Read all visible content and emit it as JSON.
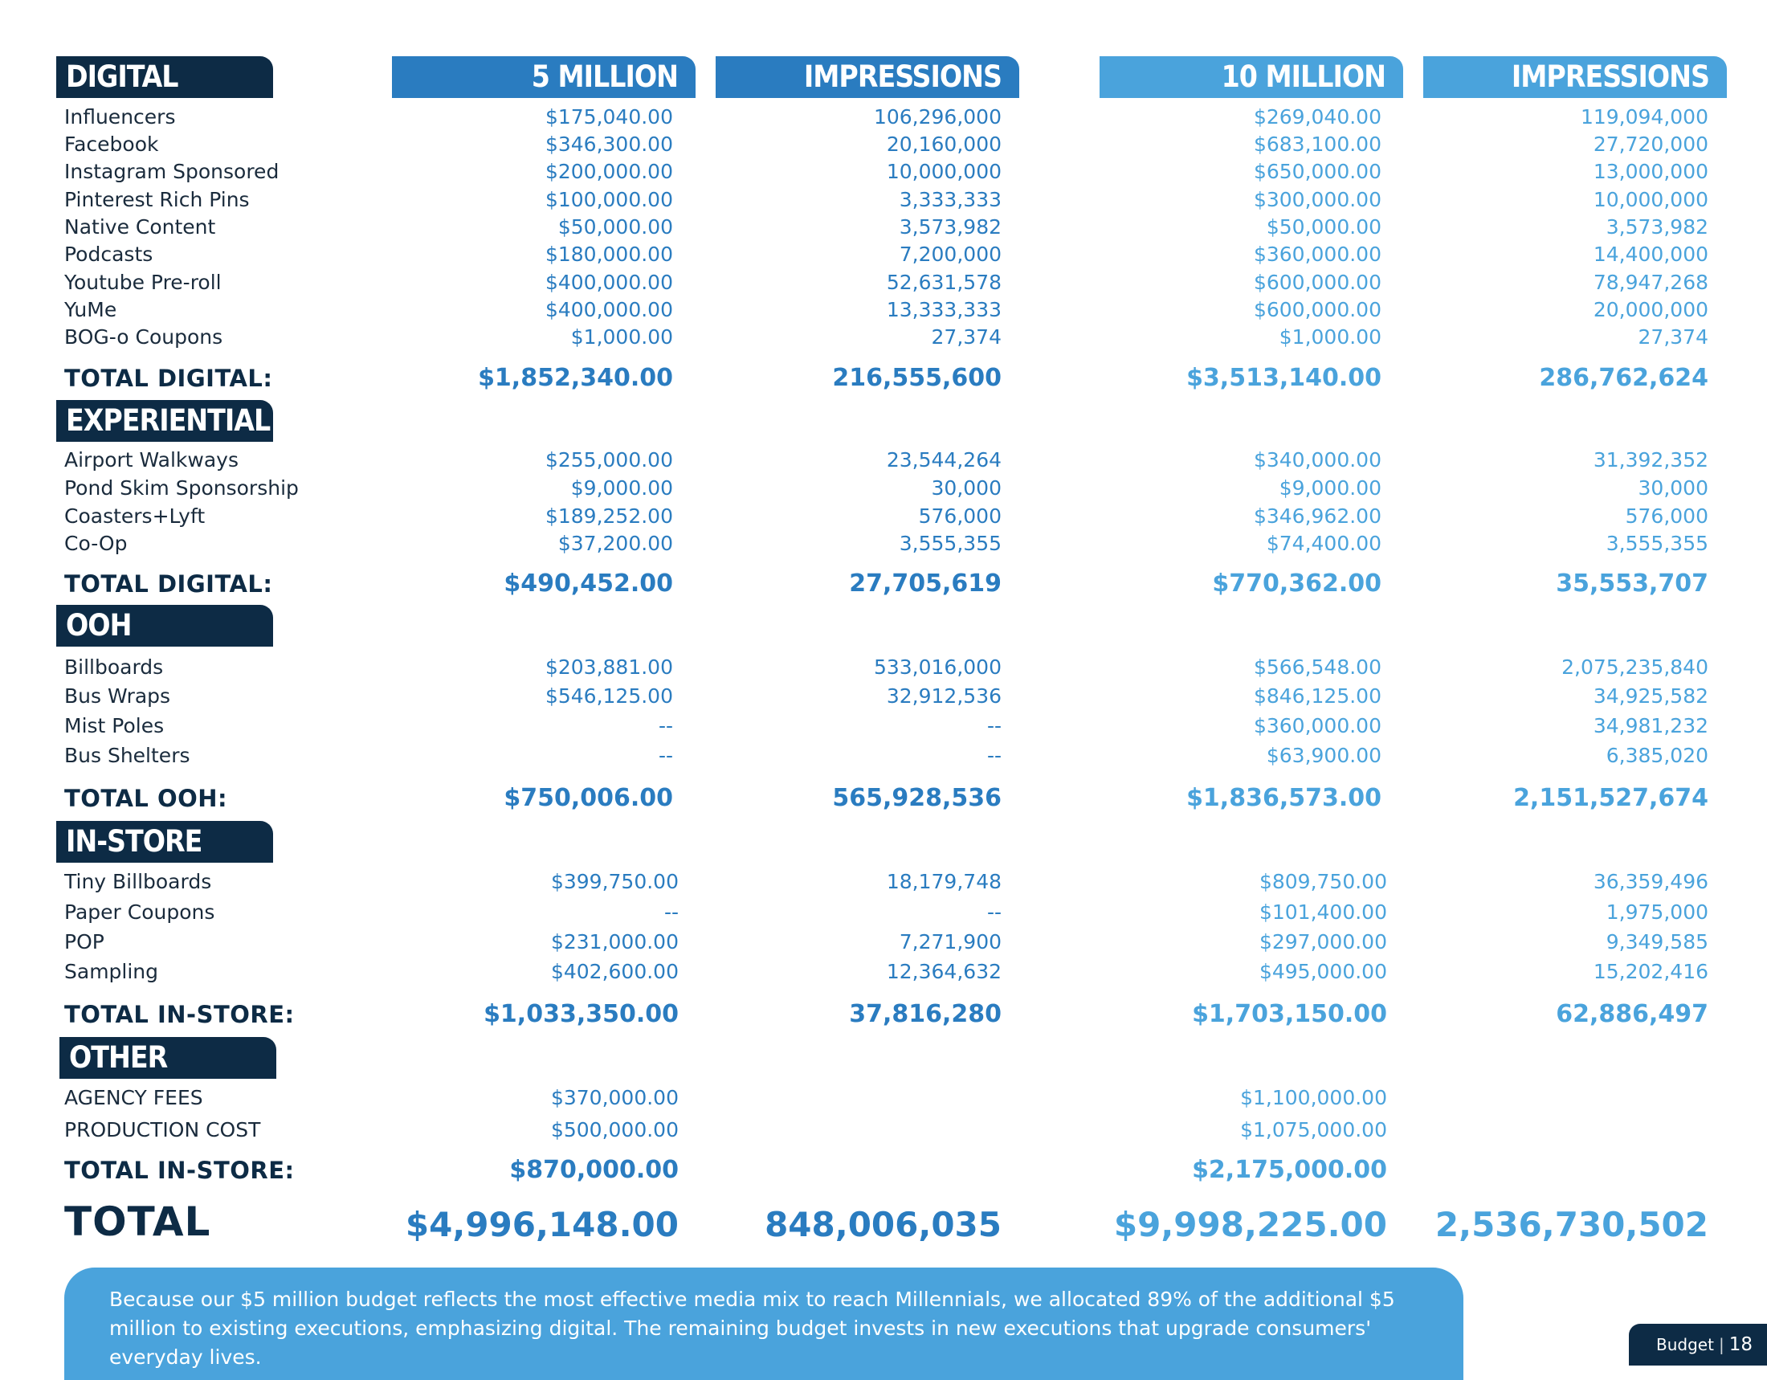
{
  "headers": {
    "col1": "5 MILLION",
    "col2": "IMPRESSIONS",
    "col3": "10 MILLION",
    "col4": "IMPRESSIONS"
  },
  "colors": {
    "navy": "#0d2b45",
    "blue": "#2a7cc0",
    "light_blue": "#4aa3dc"
  },
  "sections": [
    {
      "title": "DIGITAL",
      "rows": [
        [
          "Influencers",
          "$175,040.00",
          "106,296,000",
          "$269,040.00",
          "119,094,000"
        ],
        [
          "Facebook",
          "$346,300.00",
          "20,160,000",
          "$683,100.00",
          "27,720,000"
        ],
        [
          "Instagram Sponsored",
          "$200,000.00",
          "10,000,000",
          "$650,000.00",
          "13,000,000"
        ],
        [
          "Pinterest Rich Pins",
          "$100,000.00",
          "3,333,333",
          "$300,000.00",
          "10,000,000"
        ],
        [
          "Native Content",
          "$50,000.00",
          "3,573,982",
          "$50,000.00",
          "3,573,982"
        ],
        [
          "Podcasts",
          "$180,000.00",
          "7,200,000",
          "$360,000.00",
          "14,400,000"
        ],
        [
          "Youtube Pre-roll",
          "$400,000.00",
          "52,631,578",
          "$600,000.00",
          "78,947,268"
        ],
        [
          "YuMe",
          "$400,000.00",
          "13,333,333",
          "$600,000.00",
          "20,000,000"
        ],
        [
          "BOG-o Coupons",
          "$1,000.00",
          "27,374",
          "$1,000.00",
          "27,374"
        ]
      ],
      "total": [
        "TOTAL DIGITAL:",
        "$1,852,340.00",
        "216,555,600",
        "$3,513,140.00",
        "286,762,624"
      ]
    },
    {
      "title": "EXPERIENTIAL",
      "rows": [
        [
          "Airport Walkways",
          "$255,000.00",
          "23,544,264",
          "$340,000.00",
          "31,392,352"
        ],
        [
          "Pond Skim Sponsorship",
          "$9,000.00",
          "30,000",
          "$9,000.00",
          "30,000"
        ],
        [
          "Coasters+Lyft",
          "$189,252.00",
          "576,000",
          "$346,962.00",
          "576,000"
        ],
        [
          "Co-Op",
          "$37,200.00",
          "3,555,355",
          "$74,400.00",
          "3,555,355"
        ]
      ],
      "total": [
        "TOTAL DIGITAL:",
        "$490,452.00",
        "27,705,619",
        "$770,362.00",
        "35,553,707"
      ]
    },
    {
      "title": "OOH",
      "rows": [
        [
          "Billboards",
          "$203,881.00",
          "533,016,000",
          "$566,548.00",
          "2,075,235,840"
        ],
        [
          "Bus Wraps",
          "$546,125.00",
          "32,912,536",
          "$846,125.00",
          "34,925,582"
        ],
        [
          "Mist Poles",
          "--",
          "--",
          "$360,000.00",
          "34,981,232"
        ],
        [
          "Bus Shelters",
          "--",
          "--",
          "$63,900.00",
          "6,385,020"
        ]
      ],
      "total": [
        "TOTAL OOH:",
        "$750,006.00",
        "565,928,536",
        "$1,836,573.00",
        "2,151,527,674"
      ]
    },
    {
      "title": "IN-STORE",
      "rows": [
        [
          "Tiny Billboards",
          "$399,750.00",
          "18,179,748",
          "$809,750.00",
          "36,359,496"
        ],
        [
          "Paper Coupons",
          "--",
          "--",
          "$101,400.00",
          "1,975,000"
        ],
        [
          "POP",
          "$231,000.00",
          "7,271,900",
          "$297,000.00",
          "9,349,585"
        ],
        [
          "Sampling",
          "$402,600.00",
          "12,364,632",
          "$495,000.00",
          "15,202,416"
        ]
      ],
      "total": [
        "TOTAL IN-STORE:",
        "$1,033,350.00",
        "37,816,280",
        "$1,703,150.00",
        "62,886,497"
      ]
    },
    {
      "title": "OTHER",
      "rows": [
        [
          "AGENCY FEES",
          "$370,000.00",
          "",
          "$1,100,000.00",
          ""
        ],
        [
          "PRODUCTION COST",
          "$500,000.00",
          "",
          "$1,075,000.00",
          ""
        ]
      ],
      "total": [
        "TOTAL IN-STORE:",
        "$870,000.00",
        "",
        "$2,175,000.00",
        ""
      ]
    }
  ],
  "grand_total": [
    "TOTAL",
    "$4,996,148.00",
    "848,006,035",
    "$9,998,225.00",
    "2,536,730,502"
  ],
  "note": "Because our $5 million budget reflects the most effective media mix to reach Millennials, we allocated 89% of the additional $5 million to existing executions, emphasizing digital. The remaining budget invests in new executions that upgrade consumers' everyday lives.",
  "footer": {
    "section": "Budget",
    "separator": "|",
    "page": "18"
  }
}
